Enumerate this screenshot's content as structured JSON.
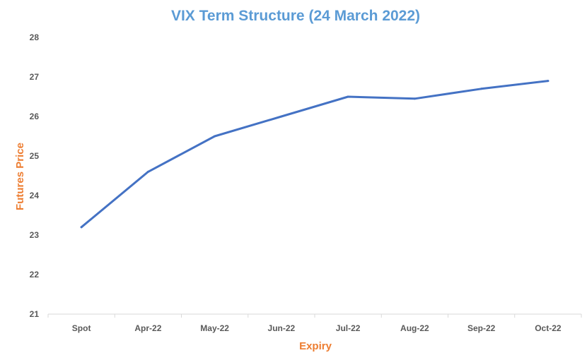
{
  "chart_data": {
    "type": "line",
    "title": "VIX Term Structure (24 March 2022)",
    "xlabel": "Expiry",
    "ylabel": "Futures Price",
    "categories": [
      "Spot",
      "Apr-22",
      "May-22",
      "Jun-22",
      "Jul-22",
      "Aug-22",
      "Sep-22",
      "Oct-22"
    ],
    "series": [
      {
        "values": [
          23.2,
          24.6,
          25.5,
          26.0,
          26.5,
          26.45,
          26.7,
          26.9
        ]
      }
    ],
    "ylim": [
      21,
      28
    ],
    "yticks": [
      21,
      22,
      23,
      24,
      25,
      26,
      27,
      28
    ],
    "grid": false,
    "legend": "none",
    "colors": {
      "title": "#5B9BD5",
      "axis_title": "#ED7D31",
      "line": "#4472C4",
      "axis": "#D9D9D9"
    }
  }
}
